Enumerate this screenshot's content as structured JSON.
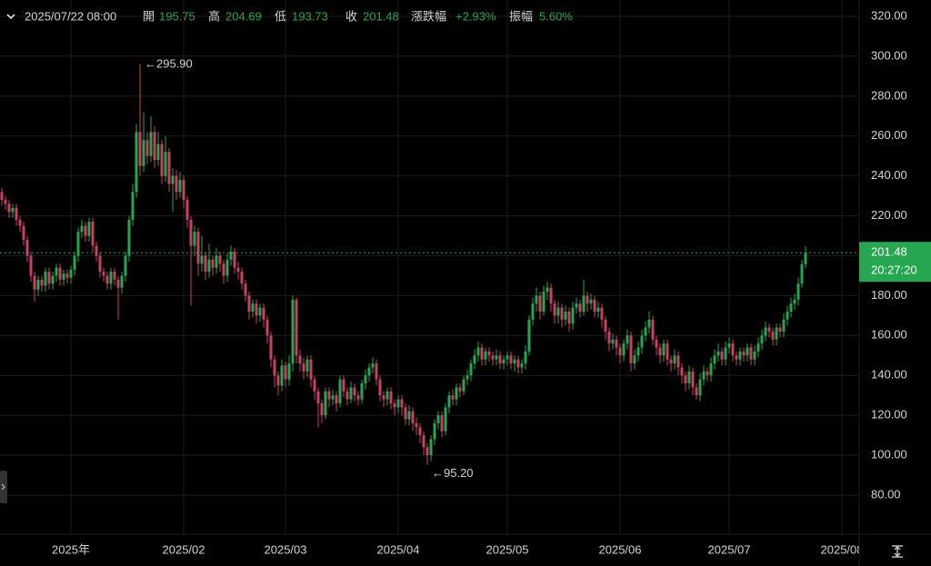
{
  "header": {
    "datetime": "2025/07/22 08:00",
    "open_label": "開",
    "high_label": "高",
    "low_label": "低",
    "close_label": "收",
    "change_label": "漲跌幅",
    "change": "+2.93%",
    "amplitude_label": "振幅",
    "amplitude": "5.60%"
  },
  "chart_data": {
    "type": "candlestick",
    "up_color": "#25a750",
    "down_color": "#ca3f64",
    "grid": true,
    "ylim": [
      60.4,
      328.2
    ],
    "yticks": [
      {
        "value": 80,
        "label": "80.00"
      },
      {
        "value": 100,
        "label": "100.00"
      },
      {
        "value": 120,
        "label": "120.00"
      },
      {
        "value": 140,
        "label": "140.00"
      },
      {
        "value": 160,
        "label": "160.00"
      },
      {
        "value": 180,
        "label": "180.00"
      },
      {
        "value": 200,
        "label": "200.00"
      },
      {
        "value": 220,
        "label": "220.00"
      },
      {
        "value": 240,
        "label": "240.00"
      },
      {
        "value": 260,
        "label": "260.00"
      },
      {
        "value": 280,
        "label": "280.00"
      },
      {
        "value": 300,
        "label": "300.00"
      },
      {
        "value": 320,
        "label": "320.00"
      }
    ],
    "x_labels": [
      "2025年",
      "2025/02",
      "2025/03",
      "2025/04",
      "2025/05",
      "2025/06",
      "2025/07",
      "2025/08"
    ],
    "annotations": [
      {
        "value": 295.9,
        "label": "295.90"
      },
      {
        "value": 95.2,
        "label": "95.20"
      }
    ],
    "last_price_timer": "20:27:20",
    "open": [
      232,
      228,
      226,
      222,
      224,
      218,
      215,
      208,
      200,
      190,
      183,
      188,
      185,
      192,
      186,
      190,
      194,
      188,
      191,
      189,
      193,
      200,
      212,
      215,
      210,
      217,
      205,
      200,
      192,
      190,
      186,
      192,
      188,
      184,
      190,
      200,
      218,
      232,
      262,
      245,
      258,
      250,
      262,
      248,
      256,
      240,
      252,
      236,
      240,
      232,
      238,
      228,
      218,
      205,
      212,
      196,
      200,
      192,
      198,
      194,
      200,
      196,
      190,
      198,
      202,
      194,
      192,
      186,
      180,
      172,
      176,
      170,
      174,
      168,
      160,
      148,
      140,
      135,
      145,
      138,
      146,
      178,
      150,
      146,
      142,
      148,
      138,
      132,
      126,
      120,
      132,
      128,
      130,
      126,
      138,
      132,
      128,
      134,
      130,
      128,
      136,
      140,
      144,
      146,
      138,
      130,
      128,
      132,
      126,
      124,
      128,
      124,
      118,
      122,
      116,
      114,
      110,
      104,
      100,
      108,
      116,
      120,
      112,
      124,
      130,
      128,
      134,
      132,
      138,
      140,
      146,
      150,
      154,
      148,
      152,
      150,
      148,
      150,
      146,
      148,
      150,
      146,
      148,
      144,
      146,
      152,
      168,
      176,
      180,
      172,
      182,
      184,
      176,
      170,
      174,
      168,
      172,
      166,
      174,
      176,
      172,
      180,
      176,
      178,
      172,
      174,
      168,
      162,
      156,
      158,
      154,
      150,
      156,
      160,
      146,
      150,
      154,
      160,
      164,
      168,
      158,
      154,
      150,
      156,
      148,
      146,
      150,
      144,
      140,
      136,
      142,
      134,
      130,
      138,
      142,
      140,
      146,
      150,
      152,
      148,
      154,
      156,
      150,
      148,
      152,
      150,
      154,
      148,
      152,
      156,
      160,
      164,
      162,
      158,
      164,
      162,
      168,
      172,
      176,
      178,
      186,
      195.75
    ],
    "high": [
      234,
      230,
      228,
      226,
      226,
      220,
      217,
      210,
      202,
      192,
      190,
      190,
      194,
      194,
      192,
      196,
      196,
      193,
      193,
      195,
      202,
      214,
      218,
      217,
      219,
      219,
      207,
      202,
      194,
      192,
      194,
      194,
      190,
      192,
      202,
      220,
      236,
      266,
      295.9,
      272,
      262,
      270,
      265,
      262,
      258,
      260,
      254,
      244,
      243,
      242,
      240,
      230,
      220,
      215,
      214,
      210,
      202,
      206,
      200,
      204,
      202,
      198,
      201,
      205,
      204,
      197,
      194,
      188,
      182,
      178,
      178,
      176,
      176,
      170,
      162,
      150,
      142,
      148,
      147,
      150,
      180,
      179,
      153,
      149,
      150,
      150,
      140,
      134,
      128,
      134,
      134,
      133,
      132,
      140,
      140,
      134,
      137,
      136,
      132,
      138,
      143,
      146,
      149,
      148,
      140,
      132,
      134,
      134,
      128,
      130,
      130,
      126,
      125,
      124,
      119,
      116,
      112,
      106,
      110,
      118,
      122,
      122,
      126,
      132,
      133,
      136,
      136,
      140,
      143,
      148,
      153,
      157,
      156,
      154,
      154,
      152,
      153,
      152,
      150,
      152,
      152,
      150,
      150,
      148,
      155,
      170,
      179,
      184,
      182,
      185,
      187,
      186,
      178,
      177,
      176,
      175,
      174,
      177,
      179,
      178,
      188,
      182,
      181,
      180,
      177,
      176,
      170,
      164,
      161,
      160,
      156,
      158,
      163,
      162,
      153,
      157,
      163,
      167,
      172,
      170,
      160,
      156,
      158,
      158,
      150,
      153,
      152,
      146,
      142,
      145,
      144,
      136,
      141,
      145,
      144,
      149,
      153,
      156,
      154,
      157,
      159,
      158,
      152,
      154,
      154,
      156,
      156,
      155,
      159,
      163,
      167,
      166,
      164,
      166,
      166,
      171,
      175,
      179,
      181,
      189,
      198,
      204.69
    ],
    "low": [
      225,
      223,
      219,
      219,
      215,
      212,
      205,
      197,
      187,
      177,
      180,
      182,
      182,
      183,
      183,
      187,
      185,
      185,
      186,
      186,
      190,
      197,
      209,
      207,
      207,
      202,
      197,
      189,
      187,
      183,
      183,
      185,
      168,
      181,
      187,
      197,
      215,
      229,
      240,
      242,
      246,
      247,
      244,
      245,
      236,
      237,
      232,
      222,
      228,
      229,
      224,
      214,
      175,
      200,
      190,
      192,
      188,
      189,
      190,
      191,
      192,
      186,
      187,
      195,
      191,
      188,
      183,
      177,
      168,
      169,
      166,
      167,
      164,
      156,
      144,
      134,
      130,
      132,
      134,
      135,
      142,
      146,
      142,
      138,
      139,
      134,
      128,
      114,
      116,
      118,
      124,
      125,
      122,
      124,
      129,
      125,
      126,
      127,
      125,
      126,
      133,
      137,
      141,
      135,
      127,
      124,
      125,
      123,
      120,
      121,
      120,
      115,
      115,
      112,
      110,
      106,
      100,
      95.2,
      97,
      105,
      113,
      109,
      110,
      121,
      125,
      125,
      129,
      130,
      135,
      137,
      143,
      147,
      145,
      145,
      147,
      145,
      145,
      143,
      143,
      145,
      143,
      142,
      141,
      141,
      143,
      150,
      165,
      172,
      168,
      170,
      178,
      172,
      166,
      166,
      164,
      165,
      162,
      163,
      171,
      169,
      170,
      172,
      173,
      169,
      169,
      164,
      158,
      152,
      153,
      150,
      146,
      147,
      153,
      142,
      143,
      147,
      151,
      157,
      161,
      155,
      150,
      146,
      147,
      145,
      142,
      143,
      140,
      136,
      132,
      133,
      130,
      128,
      127,
      135,
      137,
      137,
      143,
      147,
      145,
      145,
      151,
      147,
      145,
      145,
      147,
      147,
      145,
      145,
      149,
      153,
      157,
      159,
      155,
      155,
      159,
      159,
      165,
      169,
      173,
      175,
      184,
      193.73
    ],
    "close": [
      228,
      226,
      222,
      224,
      218,
      215,
      208,
      200,
      190,
      183,
      188,
      185,
      192,
      186,
      190,
      194,
      188,
      191,
      189,
      193,
      200,
      212,
      215,
      210,
      217,
      205,
      200,
      192,
      190,
      186,
      192,
      188,
      184,
      190,
      200,
      218,
      232,
      262,
      245,
      258,
      250,
      262,
      248,
      256,
      240,
      252,
      236,
      240,
      232,
      238,
      228,
      218,
      205,
      212,
      196,
      200,
      192,
      198,
      194,
      200,
      196,
      190,
      198,
      202,
      194,
      192,
      186,
      180,
      172,
      176,
      170,
      174,
      168,
      160,
      148,
      140,
      135,
      145,
      138,
      146,
      178,
      150,
      146,
      142,
      148,
      138,
      132,
      126,
      120,
      132,
      128,
      130,
      126,
      138,
      132,
      128,
      134,
      130,
      128,
      136,
      140,
      144,
      146,
      138,
      130,
      128,
      132,
      126,
      124,
      128,
      124,
      118,
      122,
      116,
      114,
      110,
      104,
      100,
      108,
      116,
      120,
      112,
      124,
      130,
      128,
      134,
      132,
      138,
      140,
      146,
      150,
      154,
      148,
      152,
      150,
      148,
      150,
      146,
      148,
      150,
      146,
      148,
      144,
      146,
      152,
      168,
      176,
      180,
      172,
      182,
      184,
      176,
      170,
      174,
      168,
      172,
      166,
      174,
      176,
      172,
      180,
      176,
      178,
      172,
      174,
      168,
      162,
      156,
      158,
      154,
      150,
      156,
      160,
      146,
      150,
      154,
      160,
      164,
      168,
      158,
      154,
      150,
      156,
      148,
      146,
      150,
      144,
      140,
      136,
      142,
      134,
      130,
      138,
      142,
      140,
      146,
      150,
      152,
      148,
      154,
      156,
      150,
      148,
      152,
      150,
      154,
      148,
      152,
      156,
      160,
      164,
      162,
      158,
      164,
      162,
      168,
      172,
      176,
      178,
      186,
      195.75,
      201.48
    ]
  }
}
